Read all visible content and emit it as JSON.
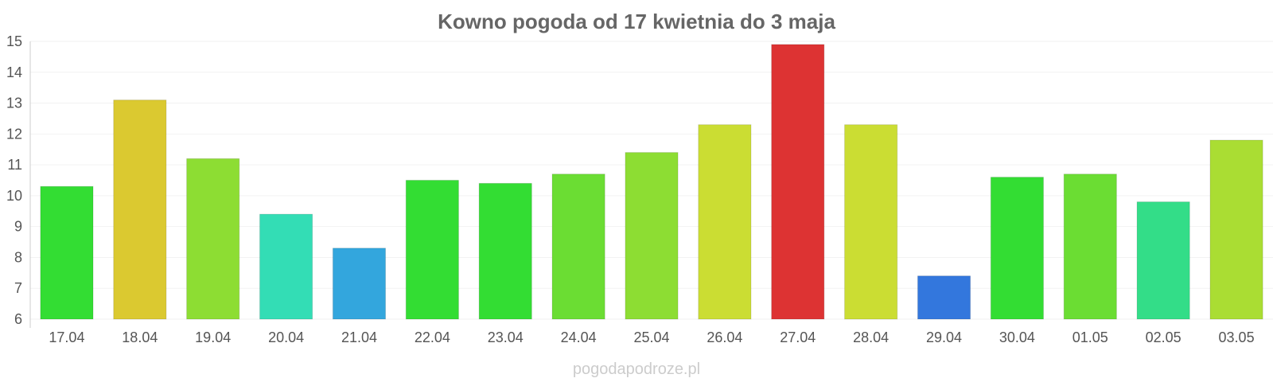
{
  "chart_data": {
    "type": "bar",
    "title": "Kowno pogoda od 17 kwietnia do 3 maja",
    "xlabel": "",
    "ylabel": "",
    "ylim": [
      6,
      15
    ],
    "yticks": [
      6,
      7,
      8,
      9,
      10,
      11,
      12,
      13,
      14,
      15
    ],
    "grid": true,
    "categories": [
      "17.04",
      "18.04",
      "19.04",
      "20.04",
      "21.04",
      "22.04",
      "23.04",
      "24.04",
      "25.04",
      "26.04",
      "27.04",
      "28.04",
      "29.04",
      "30.04",
      "01.05",
      "02.05",
      "03.05"
    ],
    "values": [
      10.3,
      13.1,
      11.2,
      9.4,
      8.3,
      10.5,
      10.4,
      10.7,
      11.4,
      12.3,
      14.9,
      12.3,
      7.4,
      10.6,
      10.7,
      9.8,
      11.8
    ],
    "colors": [
      "#33dd33",
      "#dbc930",
      "#8ddd33",
      "#33ddb5",
      "#33a6dd",
      "#33dd33",
      "#33dd33",
      "#6bdd33",
      "#8ddd33",
      "#cbdd33",
      "#dd3333",
      "#cbdd33",
      "#3377dd",
      "#33dd33",
      "#6bdd33",
      "#33dd88",
      "#aadd33"
    ]
  },
  "watermark": "pogodapodroze.pl"
}
